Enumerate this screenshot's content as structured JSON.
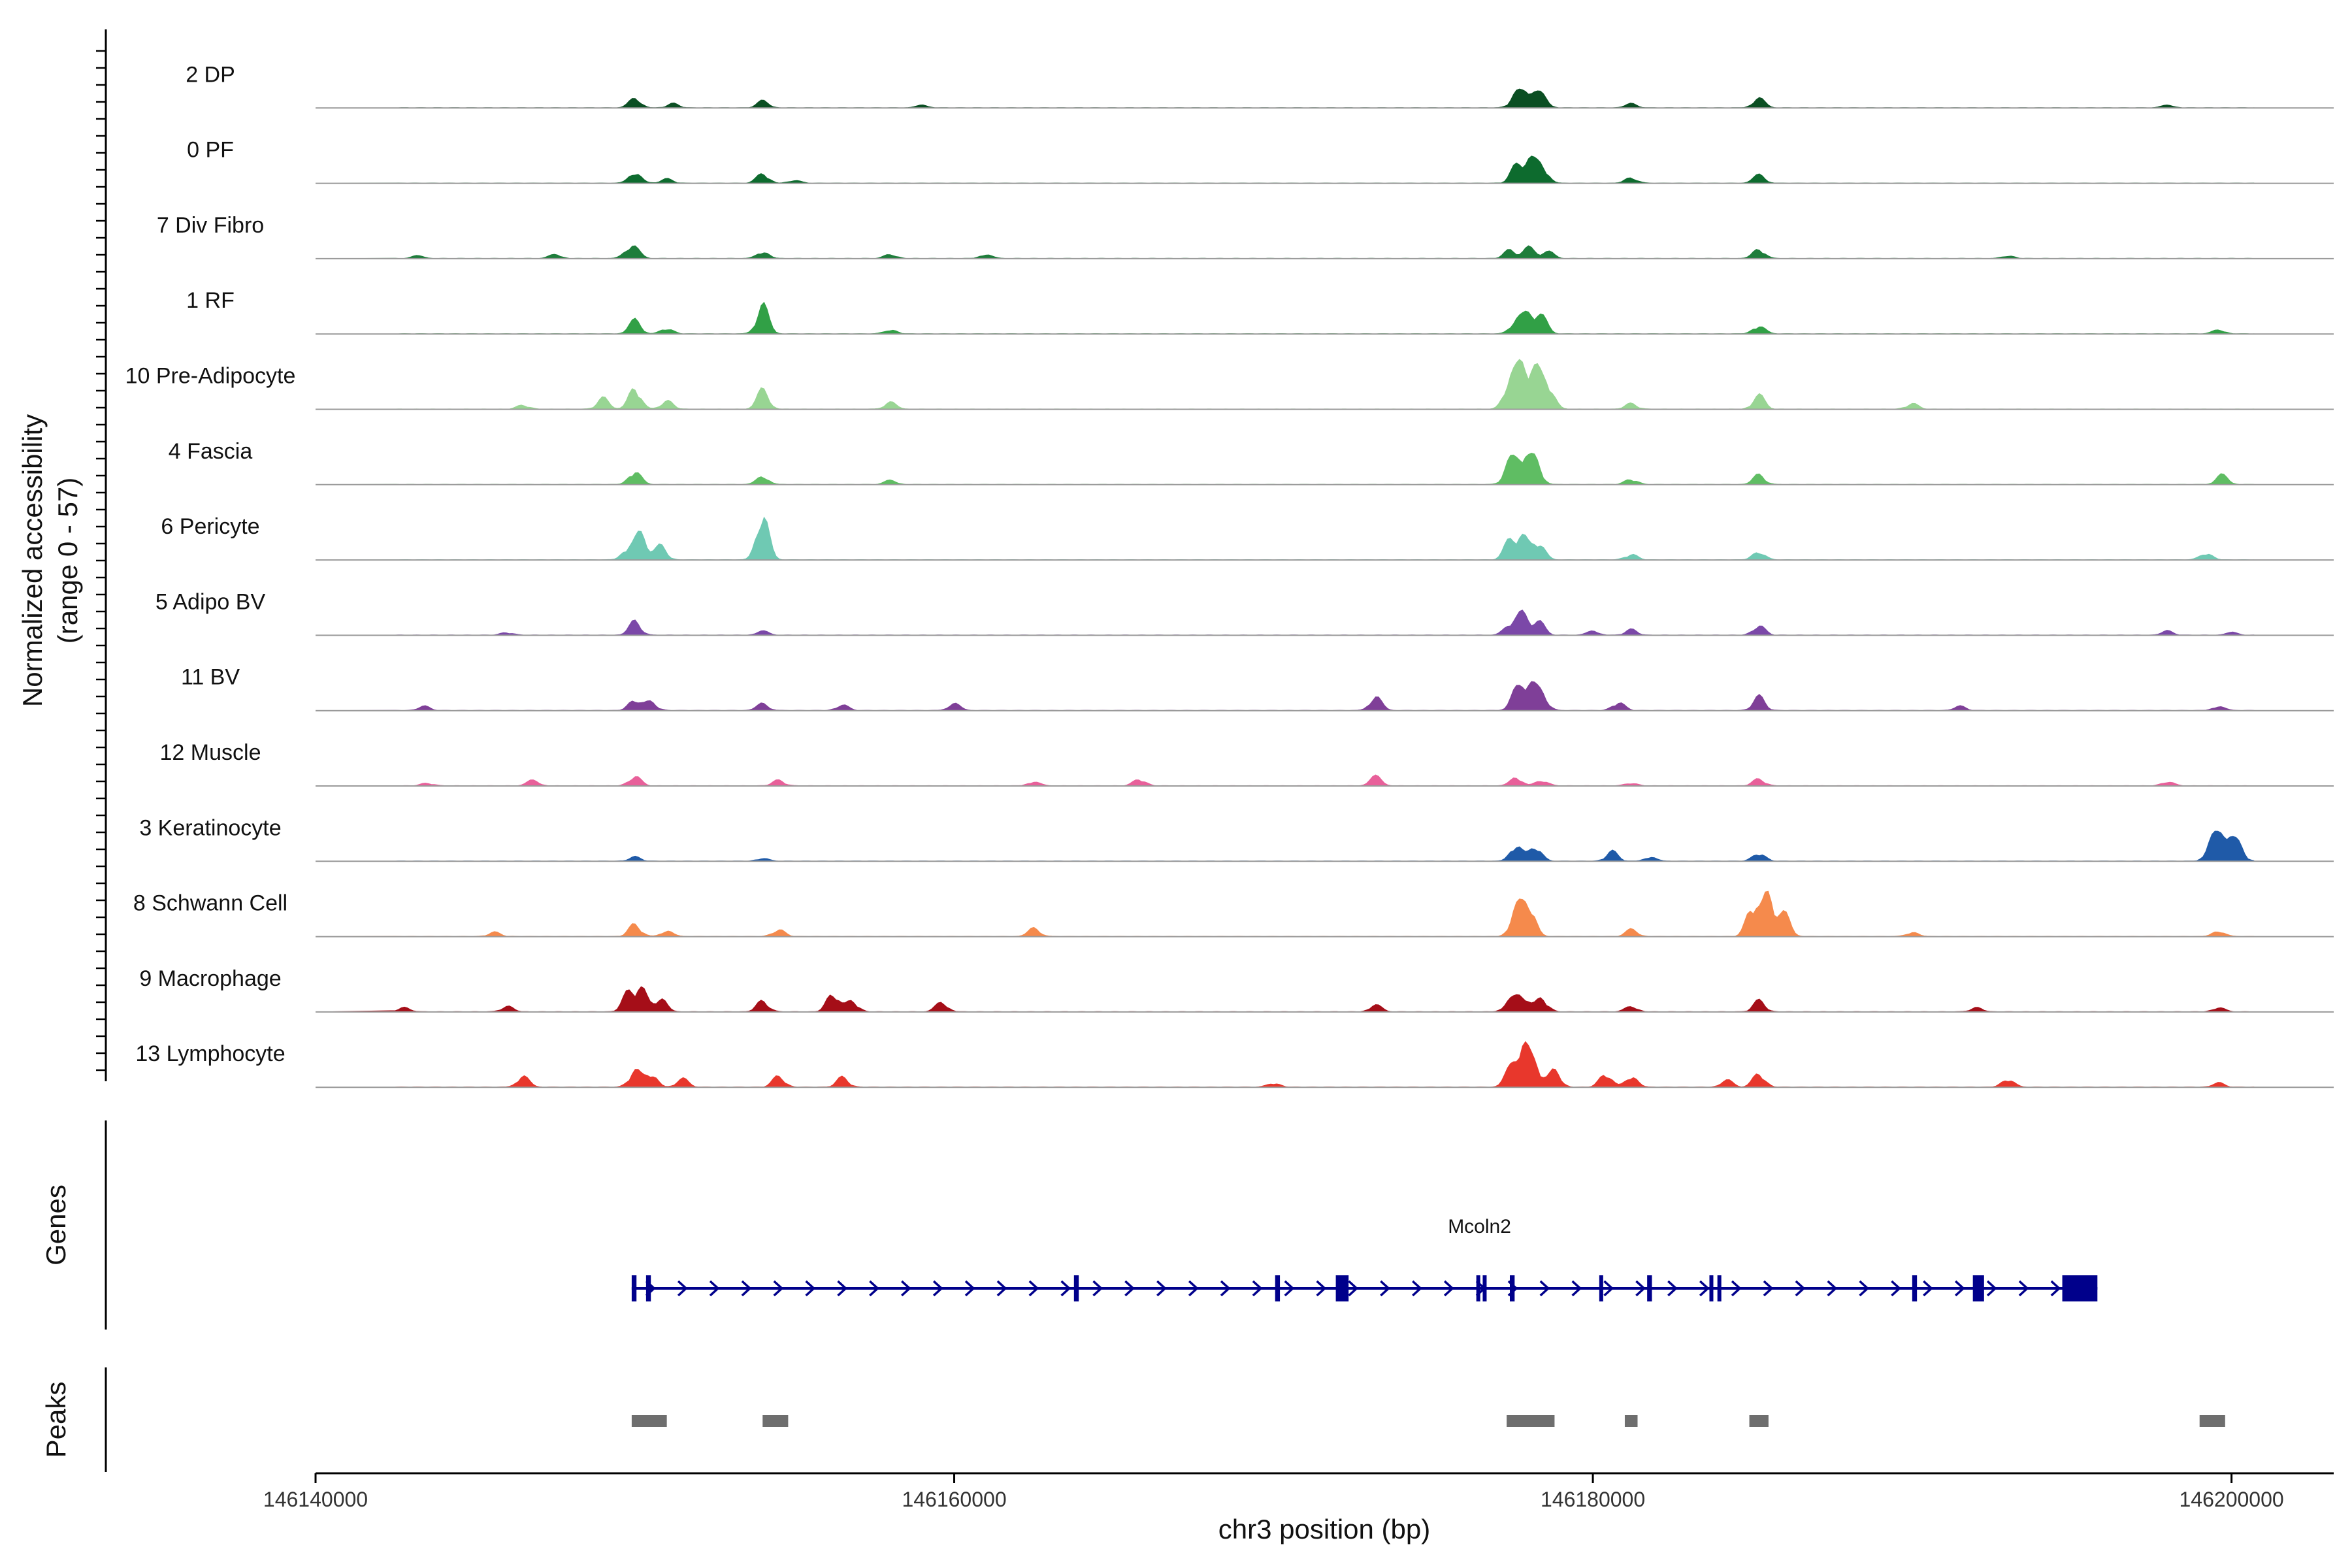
{
  "chart_data": {
    "type": "area",
    "title": "",
    "y_axis_title_line1": "Normalized accessibility",
    "y_axis_title_line2": "(range 0 - 57)",
    "xlabel": "chr3 position (bp)",
    "xlim": [
      146140000,
      146203200
    ],
    "ylim": [
      0,
      57
    ],
    "x_ticks": [
      {
        "value": 146140000,
        "label": "146140000"
      },
      {
        "value": 146160000,
        "label": "146160000"
      },
      {
        "value": 146180000,
        "label": "146180000"
      },
      {
        "value": 146200000,
        "label": "146200000"
      }
    ],
    "series": [
      {
        "name": "2 DP",
        "color": "#0b4f23",
        "peaks": [
          [
            146150000,
            7
          ],
          [
            146151200,
            3
          ],
          [
            146154000,
            5
          ],
          [
            146159000,
            2
          ],
          [
            146177600,
            10
          ],
          [
            146178000,
            12
          ],
          [
            146178400,
            9
          ],
          [
            146181200,
            3
          ],
          [
            146185200,
            7
          ],
          [
            146198000,
            2
          ]
        ]
      },
      {
        "name": "0 PF",
        "color": "#0d6b2e",
        "peaks": [
          [
            146150000,
            8
          ],
          [
            146151000,
            3
          ],
          [
            146154000,
            7
          ],
          [
            146155000,
            2
          ],
          [
            146177600,
            12
          ],
          [
            146178000,
            16
          ],
          [
            146178400,
            13
          ],
          [
            146181200,
            4
          ],
          [
            146185200,
            6
          ]
        ]
      },
      {
        "name": "7 Div Fibro",
        "color": "#1e7d3b",
        "peaks": [
          [
            146143200,
            2
          ],
          [
            146147500,
            3
          ],
          [
            146149800,
            5
          ],
          [
            146150000,
            6
          ],
          [
            146154000,
            5
          ],
          [
            146158000,
            3
          ],
          [
            146161000,
            3
          ],
          [
            146177400,
            6
          ],
          [
            146178000,
            8
          ],
          [
            146178600,
            5
          ],
          [
            146185200,
            7
          ],
          [
            146193000,
            2
          ]
        ]
      },
      {
        "name": "1 RF",
        "color": "#31a046",
        "peaks": [
          [
            146150000,
            10
          ],
          [
            146151000,
            4
          ],
          [
            146154000,
            21
          ],
          [
            146158000,
            3
          ],
          [
            146177600,
            10
          ],
          [
            146178000,
            14
          ],
          [
            146178400,
            12
          ],
          [
            146185200,
            6
          ],
          [
            146199600,
            3
          ]
        ]
      },
      {
        "name": "10 Pre-Adipocyte",
        "color": "#98d593",
        "peaks": [
          [
            146146500,
            3
          ],
          [
            146149000,
            8
          ],
          [
            146150000,
            16
          ],
          [
            146151000,
            6
          ],
          [
            146154000,
            14
          ],
          [
            146158000,
            5
          ],
          [
            146177400,
            22
          ],
          [
            146177800,
            30
          ],
          [
            146178200,
            26
          ],
          [
            146178600,
            18
          ],
          [
            146181200,
            4
          ],
          [
            146185200,
            10
          ],
          [
            146190000,
            4
          ]
        ]
      },
      {
        "name": "4 Fascia",
        "color": "#5fbd63",
        "peaks": [
          [
            146150000,
            10
          ],
          [
            146154000,
            6
          ],
          [
            146158000,
            3
          ],
          [
            146177400,
            16
          ],
          [
            146177800,
            20
          ],
          [
            146178200,
            17
          ],
          [
            146181200,
            4
          ],
          [
            146185200,
            7
          ],
          [
            146199700,
            7
          ]
        ]
      },
      {
        "name": "6 Pericyte",
        "color": "#6fc9b3",
        "peaks": [
          [
            146149800,
            9
          ],
          [
            146150200,
            18
          ],
          [
            146150800,
            10
          ],
          [
            146154000,
            34
          ],
          [
            146177400,
            14
          ],
          [
            146177800,
            16
          ],
          [
            146178300,
            13
          ],
          [
            146181200,
            4
          ],
          [
            146185200,
            6
          ],
          [
            146199200,
            5
          ]
        ]
      },
      {
        "name": "5 Adipo BV",
        "color": "#7b48a8",
        "peaks": [
          [
            146146000,
            2
          ],
          [
            146150000,
            10
          ],
          [
            146154000,
            3
          ],
          [
            146177400,
            8
          ],
          [
            146177800,
            15
          ],
          [
            146178300,
            10
          ],
          [
            146180000,
            3
          ],
          [
            146181200,
            4
          ],
          [
            146185200,
            7
          ],
          [
            146198000,
            3
          ],
          [
            146200000,
            2
          ]
        ]
      },
      {
        "name": "11 BV",
        "color": "#7f3f98",
        "peaks": [
          [
            146143400,
            3
          ],
          [
            146150000,
            8
          ],
          [
            146150500,
            6
          ],
          [
            146154000,
            5
          ],
          [
            146156500,
            4
          ],
          [
            146160000,
            5
          ],
          [
            146173200,
            10
          ],
          [
            146177600,
            14
          ],
          [
            146178000,
            20
          ],
          [
            146178400,
            12
          ],
          [
            146180800,
            6
          ],
          [
            146185200,
            10
          ],
          [
            146191500,
            3
          ],
          [
            146199600,
            3
          ]
        ]
      },
      {
        "name": "12 Muscle",
        "color": "#e8609a",
        "peaks": [
          [
            146143500,
            2
          ],
          [
            146146800,
            4
          ],
          [
            146150000,
            7
          ],
          [
            146154500,
            4
          ],
          [
            146162500,
            3
          ],
          [
            146165800,
            5
          ],
          [
            146173200,
            7
          ],
          [
            146177600,
            6
          ],
          [
            146178400,
            4
          ],
          [
            146181200,
            2
          ],
          [
            146185200,
            5
          ],
          [
            146198000,
            3
          ]
        ]
      },
      {
        "name": "3 Keratinocyte",
        "color": "#1f5aa8",
        "peaks": [
          [
            146150000,
            3
          ],
          [
            146154000,
            2
          ],
          [
            146177600,
            12
          ],
          [
            146178200,
            11
          ],
          [
            146180600,
            7
          ],
          [
            146181800,
            3
          ],
          [
            146185200,
            6
          ],
          [
            146199400,
            16
          ],
          [
            146199800,
            20
          ],
          [
            146200200,
            12
          ]
        ]
      },
      {
        "name": "8 Schwann Cell",
        "color": "#f58a4c",
        "peaks": [
          [
            146145600,
            3
          ],
          [
            146150000,
            9
          ],
          [
            146151000,
            4
          ],
          [
            146154500,
            5
          ],
          [
            146162500,
            6
          ],
          [
            146177600,
            20
          ],
          [
            146178000,
            24
          ],
          [
            146181200,
            5
          ],
          [
            146185000,
            24
          ],
          [
            146185500,
            30
          ],
          [
            146186000,
            16
          ],
          [
            146190000,
            3
          ],
          [
            146199600,
            4
          ]
        ]
      },
      {
        "name": "9 Macrophage",
        "color": "#a50e18",
        "peaks": [
          [
            146142800,
            3
          ],
          [
            146146000,
            4
          ],
          [
            146149800,
            14
          ],
          [
            146150200,
            16
          ],
          [
            146150800,
            10
          ],
          [
            146154000,
            8
          ],
          [
            146156200,
            14
          ],
          [
            146156800,
            8
          ],
          [
            146159600,
            7
          ],
          [
            146173200,
            5
          ],
          [
            146177400,
            8
          ],
          [
            146177800,
            12
          ],
          [
            146178400,
            10
          ],
          [
            146181200,
            4
          ],
          [
            146185200,
            8
          ],
          [
            146192000,
            3
          ],
          [
            146199600,
            3
          ]
        ]
      },
      {
        "name": "13 Lymphocyte",
        "color": "#e8372c",
        "peaks": [
          [
            146146500,
            8
          ],
          [
            146150000,
            12
          ],
          [
            146150500,
            10
          ],
          [
            146151500,
            6
          ],
          [
            146154500,
            8
          ],
          [
            146156500,
            7
          ],
          [
            146170000,
            3
          ],
          [
            146177400,
            12
          ],
          [
            146177800,
            30
          ],
          [
            146178200,
            16
          ],
          [
            146178800,
            12
          ],
          [
            146180400,
            10
          ],
          [
            146181200,
            8
          ],
          [
            146184200,
            5
          ],
          [
            146185200,
            10
          ],
          [
            146193000,
            6
          ],
          [
            146199600,
            3
          ]
        ]
      }
    ],
    "genes": [
      {
        "name": "Mcoln2",
        "color": "#00008b",
        "strand": "+",
        "start": 146149900,
        "end": 146195800,
        "exons": [
          {
            "start": 146149900,
            "end": 146150050
          },
          {
            "start": 146150350,
            "end": 146150500
          },
          {
            "start": 146163750,
            "end": 146163900
          },
          {
            "start": 146170050,
            "end": 146170200
          },
          {
            "start": 146171950,
            "end": 146172350
          },
          {
            "start": 146176350,
            "end": 146176450
          },
          {
            "start": 146176550,
            "end": 146176650
          },
          {
            "start": 146177400,
            "end": 146177550
          },
          {
            "start": 146180200,
            "end": 146180300
          },
          {
            "start": 146181700,
            "end": 146181850
          },
          {
            "start": 146183650,
            "end": 146183750
          },
          {
            "start": 146183900,
            "end": 146184000
          },
          {
            "start": 146190000,
            "end": 146190150
          },
          {
            "start": 146191900,
            "end": 146192250
          },
          {
            "start": 146194700,
            "end": 146195800
          }
        ]
      }
    ],
    "peak_regions": [
      [
        146149900,
        146151000
      ],
      [
        146154000,
        146154800
      ],
      [
        146177300,
        146178800
      ],
      [
        146181000,
        146181400
      ],
      [
        146184900,
        146185500
      ],
      [
        146199000,
        146199800
      ]
    ],
    "panels": {
      "genes_title": "Genes",
      "peaks_title": "Peaks",
      "peak_color": "#6e6e6e"
    }
  }
}
